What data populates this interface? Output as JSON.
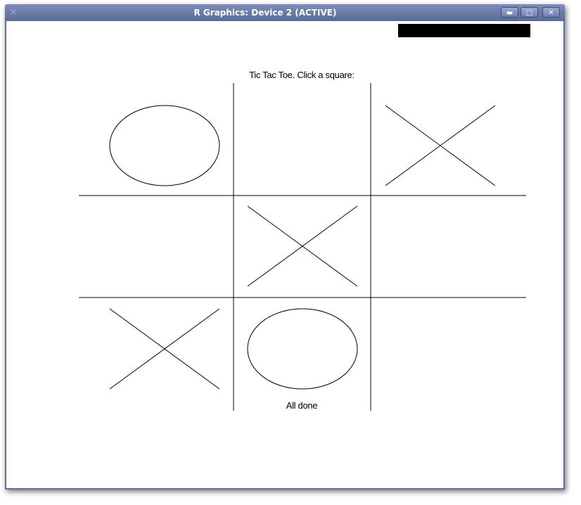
{
  "window": {
    "title": "R Graphics: Device 2 (ACTIVE)",
    "app_icon": "x-icon",
    "controls": {
      "minimize": "▬",
      "maximize": "□",
      "close": "✕"
    }
  },
  "game": {
    "heading": "Tic Tac Toe. Click a square:",
    "status": "All done",
    "board": [
      [
        "O",
        "",
        "X"
      ],
      [
        "",
        "X",
        ""
      ],
      [
        "X",
        "O",
        ""
      ]
    ]
  },
  "colors": {
    "titlebar": "#6677a8",
    "canvas": "#ffffff",
    "ink": "#000000"
  }
}
